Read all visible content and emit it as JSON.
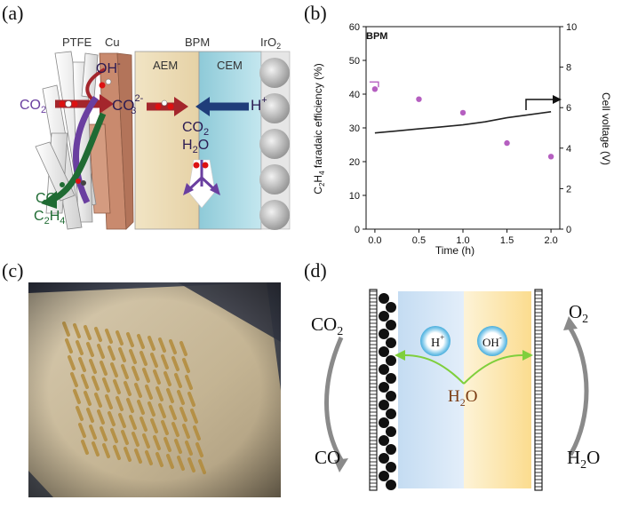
{
  "panel_a": {
    "label": "(a)",
    "header_ptfe": "PTFE",
    "header_cu": "Cu",
    "header_bpm": "BPM",
    "header_iro2": "IrO",
    "header_iro2_sub": "2",
    "aem": "AEM",
    "cem": "CEM",
    "oh": "OH",
    "oh_sup": "-",
    "co2_left": "CO",
    "co2_left_sub": "2",
    "co3": "CO",
    "co3_sub": "3",
    "co3_sup": "2-",
    "hplus": "H",
    "hplus_sup": "+",
    "co2_mid": "CO",
    "co2_mid_sub": "2",
    "h2o_mid": "H",
    "h2o_mid_sub": "2",
    "h2o_mid_o": "O",
    "co_out": "CO",
    "c2h4_c": "C",
    "c2h4_sub1": "2",
    "c2h4_h": "H",
    "c2h4_sub2": "4",
    "colors": {
      "aem": "#ecdcb6",
      "cem": "#9fd3df",
      "cu": "#c98a6e",
      "co2_arrow": "#a4262c",
      "h_arrow": "#1f3d7a",
      "co_arrow": "#1f6b33",
      "purple": "#6a3fa0"
    }
  },
  "panel_b": {
    "label": "(b)",
    "chart_data": {
      "type": "scatter",
      "title": "BPM",
      "xlabel": "Time (h)",
      "ylabel": "C2H4 faradaic efficiency (%)",
      "ylabel_parts": {
        "c": "C",
        "sub1": "2",
        "h": "H",
        "sub2": "4",
        "rest": " faradaic efficiency (%)"
      },
      "y2label": "Cell voltage (V)",
      "xlim": [
        -0.1,
        2.1
      ],
      "ylim": [
        0,
        60
      ],
      "y2lim": [
        0,
        10
      ],
      "x_ticks": [
        "0.0",
        "0.5",
        "1.0",
        "1.5",
        "2.0"
      ],
      "y_ticks": [
        "0",
        "10",
        "20",
        "30",
        "40",
        "50",
        "60"
      ],
      "y2_ticks": [
        "0",
        "2",
        "4",
        "6",
        "8",
        "10"
      ],
      "series": [
        {
          "axis": "left",
          "type": "scatter",
          "color": "#b55fc0",
          "x": [
            0.0,
            0.5,
            1.0,
            1.5,
            2.0
          ],
          "values": [
            41.5,
            38.5,
            34.5,
            25.5,
            21.5
          ]
        },
        {
          "axis": "right",
          "type": "line",
          "color": "#222222",
          "x": [
            0.0,
            0.25,
            0.5,
            0.75,
            1.0,
            1.25,
            1.5,
            1.75,
            2.0
          ],
          "values": [
            4.75,
            4.85,
            4.95,
            5.05,
            5.15,
            5.3,
            5.5,
            5.65,
            5.8
          ]
        }
      ]
    }
  },
  "panel_c": {
    "label": "(c)",
    "colors": {
      "fabric": "#c7b89c",
      "dark": "#3e4150",
      "pattern": "#b38b3a"
    }
  },
  "panel_d": {
    "label": "(d)",
    "co2": "CO",
    "co2_sub": "2",
    "co": "CO",
    "o2": "O",
    "o2_sub": "2",
    "h2o_right": "H",
    "h2o_right_sub": "2",
    "h2o_right_o": "O",
    "h2o_center": "H",
    "h2o_center_sub": "2",
    "h2o_center_o": "O",
    "hplus": "H",
    "hplus_sup": "+",
    "ohminus": "OH",
    "ohminus_sup": "-",
    "colors": {
      "left_region": "#cde0f2",
      "right_region": "#fbe3a6",
      "arrow_green": "#7fcf3c",
      "bubble": "#6ec1e6"
    }
  }
}
